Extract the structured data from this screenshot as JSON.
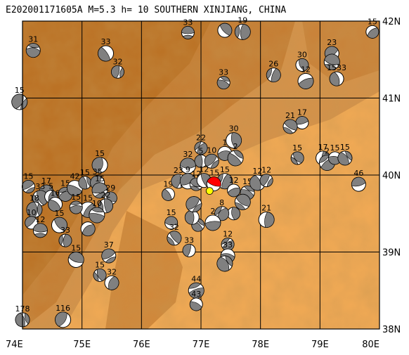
{
  "title": "E202001171605A  M=5.3  h= 10  SOUTHERN XINJIANG, CHINA",
  "colors": {
    "dark_terrain": "#b86f22",
    "mid_terrain": "#d4924a",
    "plain": "#f0a955",
    "grid": "#000000",
    "compression": "#808080",
    "main_event": "#ff0000",
    "epicenter": "#ffff00"
  },
  "axes": {
    "x_ticks": [
      "74E",
      "75E",
      "76E",
      "77E",
      "78E",
      "79E",
      "80E"
    ],
    "y_ticks": [
      "42N",
      "41N",
      "40N",
      "39N",
      "38N"
    ],
    "lon_range": [
      74,
      80
    ],
    "lat_range": [
      38,
      42
    ]
  },
  "epicenter": {
    "lon": 77.18,
    "lat": 39.83,
    "label": "15"
  },
  "mechanisms": [
    {
      "lon": 76.78,
      "lat": 41.85,
      "label": "33"
    },
    {
      "lon": 77.4,
      "lat": 41.88,
      "label": ""
    },
    {
      "lon": 77.7,
      "lat": 41.86,
      "label": "19"
    },
    {
      "lon": 79.88,
      "lat": 41.86,
      "label": "15"
    },
    {
      "lon": 74.18,
      "lat": 41.62,
      "label": "31"
    },
    {
      "lon": 75.4,
      "lat": 41.58,
      "label": "33"
    },
    {
      "lon": 75.6,
      "lat": 41.34,
      "label": "32"
    },
    {
      "lon": 79.2,
      "lat": 41.58,
      "label": "23"
    },
    {
      "lon": 79.2,
      "lat": 41.47,
      "label": ""
    },
    {
      "lon": 78.7,
      "lat": 41.43,
      "label": "30"
    },
    {
      "lon": 78.22,
      "lat": 41.3,
      "label": "26"
    },
    {
      "lon": 78.76,
      "lat": 41.22,
      "label": "12"
    },
    {
      "lon": 77.38,
      "lat": 41.2,
      "label": "33"
    },
    {
      "lon": 79.28,
      "lat": 41.25,
      "label": "1533"
    },
    {
      "lon": 73.95,
      "lat": 40.95,
      "label": "15"
    },
    {
      "lon": 78.7,
      "lat": 40.68,
      "label": "17"
    },
    {
      "lon": 78.5,
      "lat": 40.63,
      "label": "21"
    },
    {
      "lon": 77.55,
      "lat": 40.45,
      "label": "30"
    },
    {
      "lon": 77.0,
      "lat": 40.35,
      "label": "22"
    },
    {
      "lon": 77.4,
      "lat": 40.28,
      "label": "1"
    },
    {
      "lon": 77.58,
      "lat": 40.22,
      "label": "2"
    },
    {
      "lon": 77.0,
      "lat": 40.18,
      "label": "5"
    },
    {
      "lon": 77.18,
      "lat": 40.18,
      "label": "10"
    },
    {
      "lon": 76.78,
      "lat": 40.12,
      "label": "32"
    },
    {
      "lon": 78.62,
      "lat": 40.22,
      "label": "15"
    },
    {
      "lon": 79.05,
      "lat": 40.22,
      "label": "17"
    },
    {
      "lon": 79.12,
      "lat": 40.16,
      "label": "2"
    },
    {
      "lon": 79.25,
      "lat": 40.22,
      "label": "15"
    },
    {
      "lon": 79.42,
      "lat": 40.22,
      "label": "15"
    },
    {
      "lon": 75.3,
      "lat": 40.13,
      "label": "15"
    },
    {
      "lon": 74.1,
      "lat": 39.85,
      "label": "15"
    },
    {
      "lon": 74.4,
      "lat": 39.78,
      "label": "17"
    },
    {
      "lon": 74.3,
      "lat": 39.7,
      "label": "33"
    },
    {
      "lon": 74.48,
      "lat": 39.72,
      "label": "5"
    },
    {
      "lon": 74.72,
      "lat": 39.75,
      "label": "15"
    },
    {
      "lon": 74.88,
      "lat": 39.83,
      "label": "42"
    },
    {
      "lon": 75.05,
      "lat": 39.9,
      "label": "15"
    },
    {
      "lon": 75.26,
      "lat": 39.9,
      "label": "35"
    },
    {
      "lon": 75.3,
      "lat": 39.8,
      "label": "15"
    },
    {
      "lon": 75.48,
      "lat": 39.7,
      "label": "29"
    },
    {
      "lon": 75.4,
      "lat": 39.6,
      "label": "22"
    },
    {
      "lon": 75.1,
      "lat": 39.55,
      "label": "15"
    },
    {
      "lon": 74.9,
      "lat": 39.58,
      "label": "15"
    },
    {
      "lon": 74.55,
      "lat": 39.62,
      "label": "16"
    },
    {
      "lon": 74.2,
      "lat": 39.55,
      "label": "18"
    },
    {
      "lon": 74.15,
      "lat": 39.38,
      "label": "10"
    },
    {
      "lon": 74.3,
      "lat": 39.28,
      "label": "12"
    },
    {
      "lon": 74.62,
      "lat": 39.35,
      "label": "15"
    },
    {
      "lon": 74.72,
      "lat": 39.15,
      "label": "33"
    },
    {
      "lon": 75.1,
      "lat": 39.3,
      "label": ""
    },
    {
      "lon": 75.25,
      "lat": 39.48,
      "label": "10"
    },
    {
      "lon": 76.45,
      "lat": 39.75,
      "label": "19"
    },
    {
      "lon": 76.62,
      "lat": 39.92,
      "label": "23"
    },
    {
      "lon": 76.78,
      "lat": 39.92,
      "label": "9"
    },
    {
      "lon": 76.92,
      "lat": 39.88,
      "label": "12"
    },
    {
      "lon": 77.05,
      "lat": 39.93,
      "label": "12"
    },
    {
      "lon": 77.4,
      "lat": 39.92,
      "label": "15"
    },
    {
      "lon": 77.55,
      "lat": 39.8,
      "label": "12"
    },
    {
      "lon": 77.78,
      "lat": 39.77,
      "label": "15"
    },
    {
      "lon": 77.95,
      "lat": 39.9,
      "label": "12"
    },
    {
      "lon": 78.1,
      "lat": 39.93,
      "label": "12"
    },
    {
      "lon": 79.65,
      "lat": 39.88,
      "label": "46"
    },
    {
      "lon": 77.7,
      "lat": 39.65,
      "label": ""
    },
    {
      "lon": 77.55,
      "lat": 39.5,
      "label": ""
    },
    {
      "lon": 77.35,
      "lat": 39.5,
      "label": "8"
    },
    {
      "lon": 77.2,
      "lat": 39.38,
      "label": "2"
    },
    {
      "lon": 76.95,
      "lat": 39.35,
      "label": ""
    },
    {
      "lon": 76.85,
      "lat": 39.45,
      "label": ""
    },
    {
      "lon": 76.88,
      "lat": 39.62,
      "label": ""
    },
    {
      "lon": 76.5,
      "lat": 39.38,
      "label": "15"
    },
    {
      "lon": 76.55,
      "lat": 39.18,
      "label": "32"
    },
    {
      "lon": 78.1,
      "lat": 39.42,
      "label": "21"
    },
    {
      "lon": 77.45,
      "lat": 39.1,
      "label": "12"
    },
    {
      "lon": 77.45,
      "lat": 38.95,
      "label": "33"
    },
    {
      "lon": 77.4,
      "lat": 38.85,
      "label": ""
    },
    {
      "lon": 76.8,
      "lat": 39.02,
      "label": "33"
    },
    {
      "lon": 75.45,
      "lat": 38.95,
      "label": "37"
    },
    {
      "lon": 74.9,
      "lat": 38.9,
      "label": "15"
    },
    {
      "lon": 75.3,
      "lat": 38.7,
      "label": "15"
    },
    {
      "lon": 75.5,
      "lat": 38.6,
      "label": "32"
    },
    {
      "lon": 76.92,
      "lat": 38.5,
      "label": "44"
    },
    {
      "lon": 76.92,
      "lat": 38.32,
      "label": "43"
    },
    {
      "lon": 74.0,
      "lat": 38.12,
      "label": "178"
    },
    {
      "lon": 74.68,
      "lat": 38.12,
      "label": "116"
    }
  ]
}
